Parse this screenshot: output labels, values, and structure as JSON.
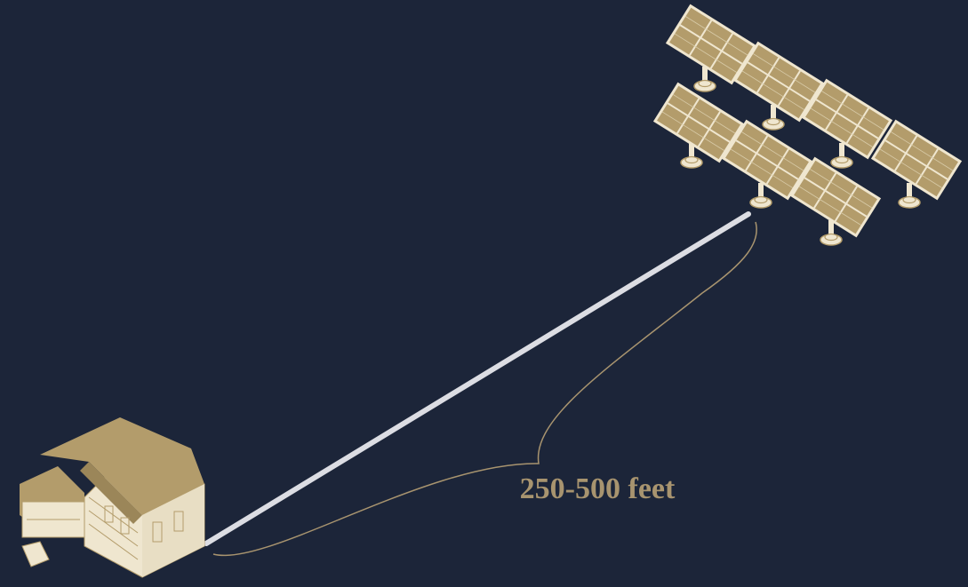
{
  "label": "250-500 feet"
}
